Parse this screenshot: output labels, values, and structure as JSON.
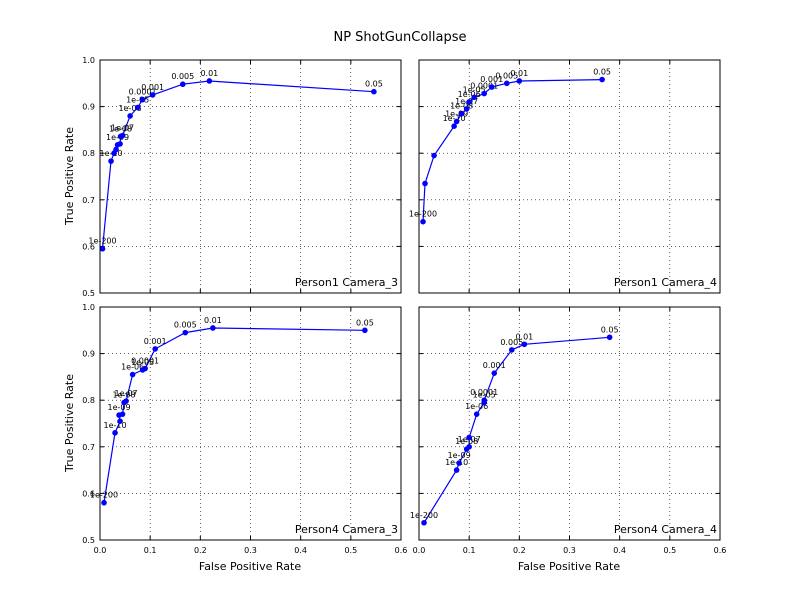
{
  "figure": {
    "title": "NP ShotGunCollapse",
    "xlabel": "False Positive Rate",
    "ylabel": "True Positive Rate"
  },
  "chart_data": [
    {
      "type": "line",
      "title": "Person1 Camera_3",
      "xlim": [
        0,
        0.6
      ],
      "ylim": [
        0.5,
        1.0
      ],
      "xticks": [
        "0.0",
        "0.1",
        "0.2",
        "0.3",
        "0.4",
        "0.5",
        "0.6"
      ],
      "yticks": [
        "0.5",
        "0.6",
        "0.7",
        "0.8",
        "0.9",
        "1.0"
      ],
      "show_xtick_labels": false,
      "show_ytick_labels": true,
      "grid": true,
      "color": "#0000ff",
      "points": [
        {
          "x": 0.005,
          "y": 0.595,
          "label": "1e-200"
        },
        {
          "x": 0.022,
          "y": 0.783,
          "label": "1e-10"
        },
        {
          "x": 0.028,
          "y": 0.8,
          "label": ""
        },
        {
          "x": 0.032,
          "y": 0.808,
          "label": ""
        },
        {
          "x": 0.035,
          "y": 0.818,
          "label": "1e-09"
        },
        {
          "x": 0.04,
          "y": 0.82,
          "label": ""
        },
        {
          "x": 0.041,
          "y": 0.836,
          "label": "1e-08"
        },
        {
          "x": 0.045,
          "y": 0.838,
          "label": "1e-07"
        },
        {
          "x": 0.06,
          "y": 0.88,
          "label": "1e-06"
        },
        {
          "x": 0.075,
          "y": 0.898,
          "label": "1e-05"
        },
        {
          "x": 0.085,
          "y": 0.915,
          "label": "0.0001"
        },
        {
          "x": 0.105,
          "y": 0.925,
          "label": "0.001"
        },
        {
          "x": 0.165,
          "y": 0.948,
          "label": "0.005"
        },
        {
          "x": 0.218,
          "y": 0.955,
          "label": "0.01"
        },
        {
          "x": 0.546,
          "y": 0.932,
          "label": "0.05"
        }
      ]
    },
    {
      "type": "line",
      "title": "Person1 Camera_4",
      "xlim": [
        0,
        0.6
      ],
      "ylim": [
        0.5,
        1.0
      ],
      "xticks": [
        "0.0",
        "0.1",
        "0.2",
        "0.3",
        "0.4",
        "0.5",
        "0.6"
      ],
      "yticks": [
        "0.5",
        "0.6",
        "0.7",
        "0.8",
        "0.9",
        "1.0"
      ],
      "show_xtick_labels": false,
      "show_ytick_labels": false,
      "grid": true,
      "color": "#0000ff",
      "points": [
        {
          "x": 0.008,
          "y": 0.653,
          "label": "1e-200"
        },
        {
          "x": 0.012,
          "y": 0.735,
          "label": ""
        },
        {
          "x": 0.03,
          "y": 0.795,
          "label": ""
        },
        {
          "x": 0.07,
          "y": 0.858,
          "label": "1e-10"
        },
        {
          "x": 0.075,
          "y": 0.868,
          "label": "1e-09"
        },
        {
          "x": 0.085,
          "y": 0.885,
          "label": "1e-08"
        },
        {
          "x": 0.095,
          "y": 0.895,
          "label": "1e-07"
        },
        {
          "x": 0.1,
          "y": 0.91,
          "label": "1e-06"
        },
        {
          "x": 0.11,
          "y": 0.92,
          "label": "1e-05"
        },
        {
          "x": 0.13,
          "y": 0.928,
          "label": "0.0001"
        },
        {
          "x": 0.145,
          "y": 0.942,
          "label": "0.001"
        },
        {
          "x": 0.175,
          "y": 0.95,
          "label": "0.005"
        },
        {
          "x": 0.2,
          "y": 0.955,
          "label": "0.01"
        },
        {
          "x": 0.365,
          "y": 0.958,
          "label": "0.05"
        }
      ]
    },
    {
      "type": "line",
      "title": "Person4 Camera_3",
      "xlim": [
        0,
        0.6
      ],
      "ylim": [
        0.5,
        1.0
      ],
      "xticks": [
        "0.0",
        "0.1",
        "0.2",
        "0.3",
        "0.4",
        "0.5",
        "0.6"
      ],
      "yticks": [
        "0.5",
        "0.6",
        "0.7",
        "0.8",
        "0.9",
        "1.0"
      ],
      "show_xtick_labels": true,
      "show_ytick_labels": true,
      "grid": true,
      "color": "#0000ff",
      "points": [
        {
          "x": 0.008,
          "y": 0.58,
          "label": "1e-200"
        },
        {
          "x": 0.03,
          "y": 0.73,
          "label": "1e-10"
        },
        {
          "x": 0.04,
          "y": 0.755,
          "label": ""
        },
        {
          "x": 0.038,
          "y": 0.768,
          "label": "1e-09"
        },
        {
          "x": 0.045,
          "y": 0.77,
          "label": ""
        },
        {
          "x": 0.048,
          "y": 0.795,
          "label": "1e-08"
        },
        {
          "x": 0.052,
          "y": 0.798,
          "label": "1e-07"
        },
        {
          "x": 0.065,
          "y": 0.855,
          "label": "1e-06"
        },
        {
          "x": 0.085,
          "y": 0.865,
          "label": "1e-05"
        },
        {
          "x": 0.09,
          "y": 0.868,
          "label": "0.0001"
        },
        {
          "x": 0.11,
          "y": 0.91,
          "label": "0.001"
        },
        {
          "x": 0.17,
          "y": 0.945,
          "label": "0.005"
        },
        {
          "x": 0.225,
          "y": 0.955,
          "label": "0.01"
        },
        {
          "x": 0.528,
          "y": 0.95,
          "label": "0.05"
        }
      ]
    },
    {
      "type": "line",
      "title": "Person4 Camera_4",
      "xlim": [
        0,
        0.6
      ],
      "ylim": [
        0.5,
        1.0
      ],
      "xticks": [
        "0.0",
        "0.1",
        "0.2",
        "0.3",
        "0.4",
        "0.5",
        "0.6"
      ],
      "yticks": [
        "0.5",
        "0.6",
        "0.7",
        "0.8",
        "0.9",
        "1.0"
      ],
      "show_xtick_labels": true,
      "show_ytick_labels": false,
      "grid": true,
      "color": "#0000ff",
      "points": [
        {
          "x": 0.01,
          "y": 0.537,
          "label": "1e-200"
        },
        {
          "x": 0.075,
          "y": 0.65,
          "label": "1e-10"
        },
        {
          "x": 0.08,
          "y": 0.665,
          "label": "1e-09"
        },
        {
          "x": 0.095,
          "y": 0.695,
          "label": "1e-08"
        },
        {
          "x": 0.1,
          "y": 0.7,
          "label": "1e-07"
        },
        {
          "x": 0.1,
          "y": 0.72,
          "label": ""
        },
        {
          "x": 0.115,
          "y": 0.77,
          "label": "1e-06"
        },
        {
          "x": 0.13,
          "y": 0.795,
          "label": "1e-05"
        },
        {
          "x": 0.13,
          "y": 0.8,
          "label": "0.0001"
        },
        {
          "x": 0.15,
          "y": 0.858,
          "label": "0.001"
        },
        {
          "x": 0.185,
          "y": 0.908,
          "label": "0.005"
        },
        {
          "x": 0.21,
          "y": 0.92,
          "label": "0.01"
        },
        {
          "x": 0.38,
          "y": 0.935,
          "label": "0.05"
        }
      ]
    }
  ]
}
